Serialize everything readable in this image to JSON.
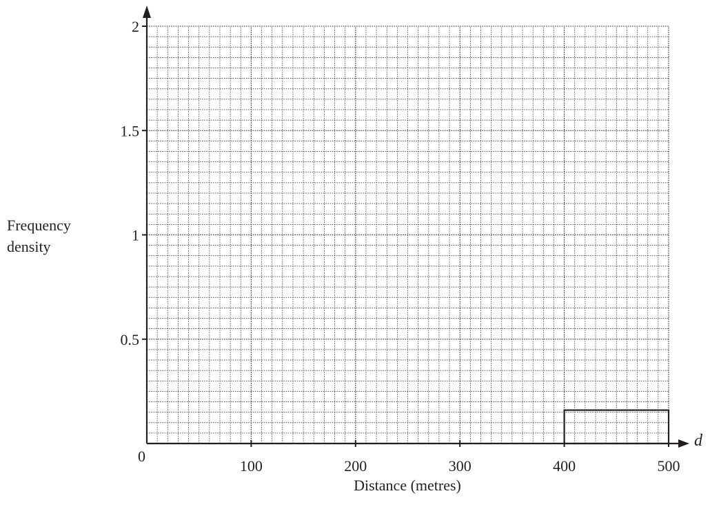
{
  "chart_data": {
    "type": "bar",
    "xlabel": "Distance (metres)",
    "ylabel_lines": [
      "Frequency",
      "density"
    ],
    "x_variable": "d",
    "origin_label": "0",
    "xlim": [
      0,
      500
    ],
    "ylim": [
      0,
      2
    ],
    "x_ticks": [
      100,
      200,
      300,
      400,
      500
    ],
    "x_tick_labels": [
      "100",
      "200",
      "300",
      "400",
      "500"
    ],
    "y_ticks": [
      0.5,
      1,
      1.5,
      2
    ],
    "y_tick_labels": [
      "0.5",
      "1",
      "1.5",
      "2"
    ],
    "grid": true,
    "bars": [
      {
        "x_start": 400,
        "x_end": 500,
        "value": 0.16
      }
    ]
  }
}
